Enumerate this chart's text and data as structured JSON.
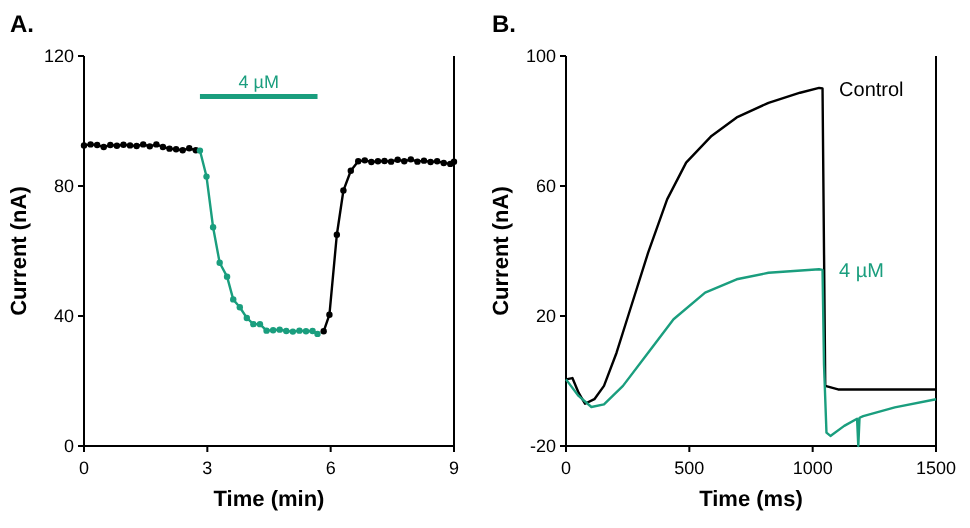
{
  "chart_data": [
    {
      "type": "line",
      "title": "A.",
      "xlabel": "Time (min)",
      "ylabel": "Current (nA)",
      "xlim": [
        0,
        9
      ],
      "ylim": [
        0,
        120
      ],
      "xticks": [
        0,
        3,
        6,
        9
      ],
      "yticks": [
        0,
        40,
        80,
        120
      ],
      "marker": "circle",
      "grid": false,
      "legend": false,
      "annotations": [
        "4 µM"
      ],
      "series": [
        {
          "color": "#000000",
          "x": [
            0,
            0.16,
            0.32,
            0.48,
            0.64,
            0.8,
            0.96,
            1.12,
            1.28,
            1.44,
            1.6,
            1.76,
            1.92,
            2.08,
            2.24,
            2.4,
            2.56,
            2.72
          ],
          "values": [
            92.5,
            92.8,
            92.6,
            92,
            92.6,
            92.4,
            92.7,
            92.5,
            92.3,
            92.8,
            92.2,
            92.8,
            92,
            91.5,
            91.3,
            91,
            91.6,
            91
          ]
        },
        {
          "color": "#1a9e7e",
          "x": [
            2.82,
            2.98,
            3.14,
            3.3,
            3.48,
            3.63,
            3.79,
            3.96,
            4.12,
            4.28,
            4.44,
            4.6,
            4.76,
            4.92,
            5.08,
            5.24,
            5.4,
            5.56,
            5.68
          ],
          "values": [
            90.9,
            82.9,
            67.3,
            56.4,
            52.1,
            45.1,
            42.7,
            39.4,
            37.5,
            37.5,
            35.5,
            35.6,
            35.8,
            35.4,
            35.2,
            35.5,
            35.3,
            35.4,
            34.5
          ]
        },
        {
          "color": "#000000",
          "x": [
            5.83,
            5.97,
            6.15,
            6.31,
            6.49,
            6.67,
            6.83,
            6.99,
            7.15,
            7.31,
            7.47,
            7.63,
            7.79,
            7.95,
            8.11,
            8.27,
            8.43,
            8.59,
            8.75,
            8.91,
            9
          ],
          "values": [
            35.3,
            40.4,
            65,
            78.6,
            84.7,
            87.6,
            87.9,
            87.4,
            87.6,
            87.7,
            87.5,
            88.1,
            87.6,
            88.2,
            87.5,
            87.8,
            87.4,
            87.6,
            87.1,
            86.8,
            87.5
          ]
        }
      ]
    },
    {
      "type": "line",
      "title": "B.",
      "xlabel": "Time (ms)",
      "ylabel": "Current (nA)",
      "xlim": [
        0,
        1500
      ],
      "ylim": [
        -20,
        100
      ],
      "xticks": [
        0,
        500,
        1000,
        1500
      ],
      "yticks": [
        -20,
        20,
        60,
        100
      ],
      "grid": false,
      "legend": false,
      "series": [
        {
          "name": "Control",
          "color": "#000000",
          "x": [
            0,
            26,
            51,
            77,
            115,
            154,
            205,
            256,
            333,
            410,
            487,
            590,
            692,
            821,
            949,
            1026,
            1040,
            1051,
            1103,
            1200,
            1300,
            1400,
            1500
          ],
          "values": [
            0.5,
            0.9,
            -3.6,
            -7,
            -5.6,
            -1.5,
            8.7,
            21,
            39.5,
            55.9,
            67.2,
            75.4,
            81.1,
            85.6,
            88.7,
            90.2,
            90,
            -1.5,
            -2.6,
            -2.6,
            -2.6,
            -2.6,
            -2.6
          ]
        },
        {
          "name": "4 µM",
          "color": "#1a9e7e",
          "x": [
            0,
            51,
            103,
            154,
            231,
            333,
            436,
            564,
            692,
            821,
            1026,
            1040,
            1046,
            1056,
            1072,
            1128,
            1180,
            1185,
            1190,
            1205,
            1333,
            1500
          ],
          "values": [
            0.5,
            -4.6,
            -8,
            -7.2,
            -1.5,
            8.7,
            19,
            27.2,
            31.3,
            33.3,
            34.4,
            34.2,
            5,
            -15.9,
            -16.9,
            -13.8,
            -11.6,
            -20,
            -11.3,
            -10.8,
            -8.1,
            -5.6
          ]
        }
      ]
    }
  ]
}
